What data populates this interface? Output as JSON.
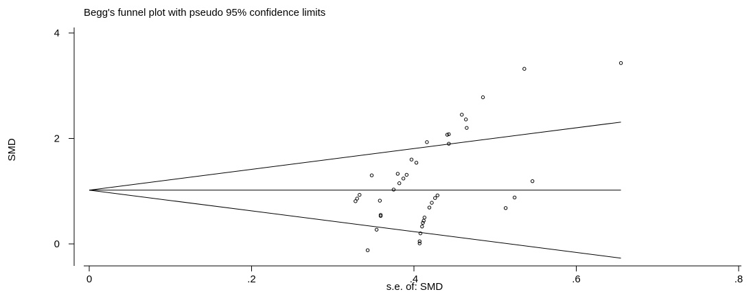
{
  "chart_data": {
    "type": "scatter",
    "title": "Begg's funnel plot with pseudo 95% confidence limits",
    "xlabel": "s.e. of: SMD",
    "ylabel": "SMD",
    "xlim": [
      0,
      0.8
    ],
    "ylim": [
      -0.45,
      4.2
    ],
    "x_ticks": [
      {
        "value": 0,
        "label": "0"
      },
      {
        "value": 0.2,
        "label": ".2"
      },
      {
        "value": 0.4,
        "label": ".4"
      },
      {
        "value": 0.6,
        "label": ".6"
      },
      {
        "value": 0.8,
        "label": ".8"
      }
    ],
    "y_ticks": [
      {
        "value": 0,
        "label": "0"
      },
      {
        "value": 2,
        "label": "2"
      },
      {
        "value": 4,
        "label": "4"
      }
    ],
    "grid": false,
    "legend": "none",
    "pooled_estimate": 1.02,
    "confidence_limits": {
      "x_end": 0.655,
      "upper_end": 2.31,
      "lower_end": -0.27
    },
    "points": [
      {
        "x": 0.655,
        "y": 3.43
      },
      {
        "x": 0.536,
        "y": 3.32
      },
      {
        "x": 0.485,
        "y": 2.78
      },
      {
        "x": 0.459,
        "y": 2.45
      },
      {
        "x": 0.464,
        "y": 2.36
      },
      {
        "x": 0.465,
        "y": 2.2
      },
      {
        "x": 0.441,
        "y": 2.07
      },
      {
        "x": 0.443,
        "y": 2.08
      },
      {
        "x": 0.416,
        "y": 1.93
      },
      {
        "x": 0.443,
        "y": 1.9
      },
      {
        "x": 0.397,
        "y": 1.6
      },
      {
        "x": 0.403,
        "y": 1.54
      },
      {
        "x": 0.38,
        "y": 1.33
      },
      {
        "x": 0.391,
        "y": 1.31
      },
      {
        "x": 0.348,
        "y": 1.3
      },
      {
        "x": 0.387,
        "y": 1.24
      },
      {
        "x": 0.546,
        "y": 1.19
      },
      {
        "x": 0.382,
        "y": 1.15
      },
      {
        "x": 0.375,
        "y": 1.03
      },
      {
        "x": 0.333,
        "y": 0.93
      },
      {
        "x": 0.429,
        "y": 0.92
      },
      {
        "x": 0.426,
        "y": 0.87
      },
      {
        "x": 0.524,
        "y": 0.88
      },
      {
        "x": 0.33,
        "y": 0.86
      },
      {
        "x": 0.328,
        "y": 0.81
      },
      {
        "x": 0.358,
        "y": 0.82
      },
      {
        "x": 0.422,
        "y": 0.78
      },
      {
        "x": 0.419,
        "y": 0.69
      },
      {
        "x": 0.513,
        "y": 0.68
      },
      {
        "x": 0.359,
        "y": 0.55
      },
      {
        "x": 0.359,
        "y": 0.53
      },
      {
        "x": 0.413,
        "y": 0.5
      },
      {
        "x": 0.412,
        "y": 0.44
      },
      {
        "x": 0.411,
        "y": 0.4
      },
      {
        "x": 0.41,
        "y": 0.33
      },
      {
        "x": 0.354,
        "y": 0.27
      },
      {
        "x": 0.408,
        "y": 0.2
      },
      {
        "x": 0.407,
        "y": 0.05
      },
      {
        "x": 0.407,
        "y": 0.01
      },
      {
        "x": 0.343,
        "y": -0.12
      }
    ]
  }
}
